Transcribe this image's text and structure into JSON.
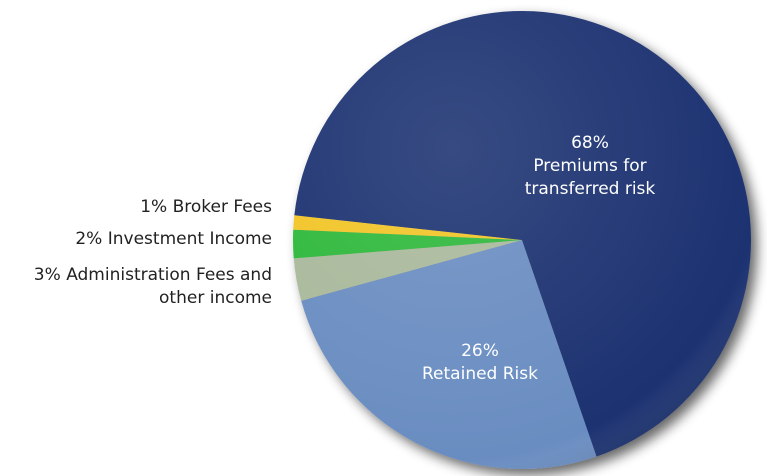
{
  "chart_data": {
    "type": "pie",
    "categories": [
      "Retained Risk",
      "Administration Fees and other income",
      "Investment Income",
      "Broker Fees",
      "Premiums for transferred risk"
    ],
    "values": [
      26,
      3,
      2,
      1,
      68
    ],
    "value_labels": [
      "26%",
      "3%",
      "2%",
      "1%",
      "68%"
    ],
    "colors": [
      "#6b8dc1",
      "#a9b99b",
      "#2eb83b",
      "#f1c426",
      "#1f3371"
    ]
  }
}
